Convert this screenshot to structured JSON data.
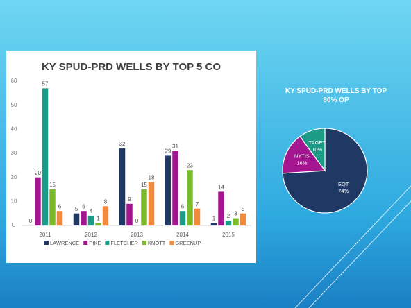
{
  "chart_data": [
    {
      "type": "bar",
      "title": "KY SPUD-PRD WELLS BY TOP 5 CO",
      "categories": [
        "2011",
        "2012",
        "2013",
        "2014",
        "2015"
      ],
      "series": [
        {
          "name": "LAWRENCE",
          "color": "#1f3864",
          "values": [
            0,
            5,
            32,
            29,
            1
          ]
        },
        {
          "name": "PIKE",
          "color": "#a3168f",
          "values": [
            20,
            6,
            9,
            31,
            14
          ]
        },
        {
          "name": "FLETCHER",
          "color": "#1c9b88",
          "values": [
            57,
            4,
            0,
            6,
            2
          ]
        },
        {
          "name": "KNOTT",
          "color": "#7bbb2a",
          "values": [
            15,
            1,
            15,
            23,
            3
          ]
        },
        {
          "name": "GREENUP",
          "color": "#f08a3c",
          "values": [
            6,
            8,
            18,
            7,
            5
          ]
        }
      ],
      "ylim": [
        0,
        60
      ],
      "yticks": [
        0,
        10,
        20,
        30,
        40,
        50,
        60
      ],
      "legend": "bottom"
    },
    {
      "type": "pie",
      "title": "KY SPUD-PRD WELLS BY TOP 80% OP",
      "categories": [
        "EQT",
        "NYTIS",
        "TAGET"
      ],
      "values": [
        74,
        16,
        10
      ],
      "value_labels": [
        "74%",
        "16%",
        "10%"
      ],
      "colors": [
        "#1f3864",
        "#a3168f",
        "#1c9b88"
      ]
    }
  ]
}
